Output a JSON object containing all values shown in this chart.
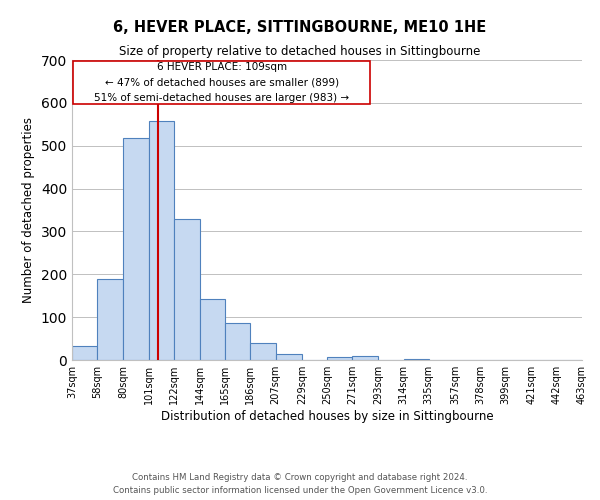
{
  "title": "6, HEVER PLACE, SITTINGBOURNE, ME10 1HE",
  "subtitle": "Size of property relative to detached houses in Sittingbourne",
  "xlabel": "Distribution of detached houses by size in Sittingbourne",
  "ylabel": "Number of detached properties",
  "footer_lines": [
    "Contains HM Land Registry data © Crown copyright and database right 2024.",
    "Contains public sector information licensed under the Open Government Licence v3.0."
  ],
  "bar_edges": [
    37,
    58,
    80,
    101,
    122,
    144,
    165,
    186,
    207,
    229,
    250,
    271,
    293,
    314,
    335,
    357,
    378,
    399,
    421,
    442,
    463
  ],
  "bar_heights": [
    33,
    190,
    519,
    557,
    328,
    143,
    87,
    40,
    13,
    0,
    8,
    10,
    0,
    3,
    0,
    0,
    0,
    0,
    0,
    0
  ],
  "bar_color": "#c6d9f1",
  "bar_edgecolor": "#4f81bd",
  "tick_labels": [
    "37sqm",
    "58sqm",
    "80sqm",
    "101sqm",
    "122sqm",
    "144sqm",
    "165sqm",
    "186sqm",
    "207sqm",
    "229sqm",
    "250sqm",
    "271sqm",
    "293sqm",
    "314sqm",
    "335sqm",
    "357sqm",
    "378sqm",
    "399sqm",
    "421sqm",
    "442sqm",
    "463sqm"
  ],
  "vline_x": 109,
  "vline_color": "#cc0000",
  "ylim": [
    0,
    700
  ],
  "yticks": [
    0,
    100,
    200,
    300,
    400,
    500,
    600,
    700
  ],
  "annotation_box_text": "6 HEVER PLACE: 109sqm\n← 47% of detached houses are smaller (899)\n51% of semi-detached houses are larger (983) →",
  "background_color": "#ffffff",
  "grid_color": "#c0c0c0"
}
